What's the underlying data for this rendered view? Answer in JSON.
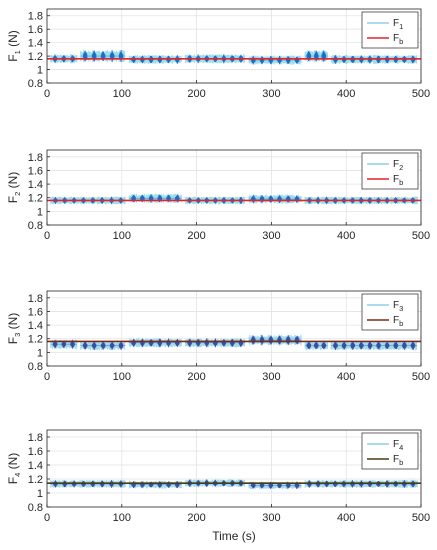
{
  "chart_data": [
    {
      "type": "line",
      "ylabel": "F1 (N)",
      "ylabel_main": "F",
      "ylabel_sub": "1",
      "ylabel_unit": " (N)",
      "xlabel": "",
      "xlim": [
        0,
        500
      ],
      "ylim": [
        0.8,
        1.9
      ],
      "xticks": [
        "0",
        "100",
        "200",
        "300",
        "400",
        "500"
      ],
      "yticks": [
        "0.8",
        "1",
        "1.2",
        "1.4",
        "1.6",
        "1.8"
      ],
      "grid": true,
      "legend_position": "top-right",
      "series": [
        {
          "name": "F1",
          "name_main": "F",
          "name_sub": "1",
          "color": "#1a6fc4",
          "style": "oscillating",
          "segments": [
            {
              "from": 5,
              "to": 40,
              "center": 1.16,
              "amp": 0.06
            },
            {
              "from": 45,
              "to": 105,
              "center": 1.2,
              "amp": 0.08
            },
            {
              "from": 110,
              "to": 180,
              "center": 1.15,
              "amp": 0.06
            },
            {
              "from": 185,
              "to": 265,
              "center": 1.16,
              "amp": 0.06
            },
            {
              "from": 270,
              "to": 340,
              "center": 1.14,
              "amp": 0.06
            },
            {
              "from": 345,
              "to": 375,
              "center": 1.2,
              "amp": 0.08
            },
            {
              "from": 380,
              "to": 495,
              "center": 1.15,
              "amp": 0.06
            }
          ]
        },
        {
          "name": "Fb",
          "name_main": "F",
          "name_sub": "b",
          "color": "#e3242b",
          "style": "flat",
          "value": 1.16
        }
      ]
    },
    {
      "type": "line",
      "ylabel": "F2 (N)",
      "ylabel_main": "F",
      "ylabel_sub": "2",
      "ylabel_unit": " (N)",
      "xlabel": "",
      "xlim": [
        0,
        500
      ],
      "ylim": [
        0.8,
        1.9
      ],
      "xticks": [
        "0",
        "100",
        "200",
        "300",
        "400",
        "500"
      ],
      "yticks": [
        "0.8",
        "1",
        "1.2",
        "1.4",
        "1.6",
        "1.8"
      ],
      "grid": true,
      "legend_position": "top-right",
      "series": [
        {
          "name": "F2",
          "name_main": "F",
          "name_sub": "2",
          "color": "#1a6fc4",
          "style": "oscillating",
          "segments": [
            {
              "from": 5,
              "to": 105,
              "center": 1.16,
              "amp": 0.05
            },
            {
              "from": 110,
              "to": 180,
              "center": 1.19,
              "amp": 0.06
            },
            {
              "from": 185,
              "to": 265,
              "center": 1.16,
              "amp": 0.05
            },
            {
              "from": 270,
              "to": 340,
              "center": 1.18,
              "amp": 0.06
            },
            {
              "from": 345,
              "to": 495,
              "center": 1.16,
              "amp": 0.05
            }
          ]
        },
        {
          "name": "Fb",
          "name_main": "F",
          "name_sub": "b",
          "color": "#e3242b",
          "style": "flat",
          "value": 1.16
        }
      ]
    },
    {
      "type": "line",
      "ylabel": "F3 (N)",
      "ylabel_main": "F",
      "ylabel_sub": "3",
      "ylabel_unit": " (N)",
      "xlabel": "",
      "xlim": [
        0,
        500
      ],
      "ylim": [
        0.8,
        1.9
      ],
      "xticks": [
        "0",
        "100",
        "200",
        "300",
        "400",
        "500"
      ],
      "yticks": [
        "0.8",
        "1",
        "1.2",
        "1.4",
        "1.6",
        "1.8"
      ],
      "grid": true,
      "legend_position": "top-right",
      "series": [
        {
          "name": "F3",
          "name_main": "F",
          "name_sub": "3",
          "color": "#3a4fa3",
          "style": "oscillating",
          "segments": [
            {
              "from": 5,
              "to": 40,
              "center": 1.12,
              "amp": 0.06
            },
            {
              "from": 45,
              "to": 105,
              "center": 1.1,
              "amp": 0.06
            },
            {
              "from": 110,
              "to": 180,
              "center": 1.14,
              "amp": 0.06
            },
            {
              "from": 185,
              "to": 265,
              "center": 1.14,
              "amp": 0.06
            },
            {
              "from": 270,
              "to": 340,
              "center": 1.18,
              "amp": 0.07
            },
            {
              "from": 345,
              "to": 375,
              "center": 1.1,
              "amp": 0.06
            },
            {
              "from": 380,
              "to": 495,
              "center": 1.1,
              "amp": 0.06
            }
          ]
        },
        {
          "name": "Fb",
          "name_main": "F",
          "name_sub": "b",
          "color": "#7a2a1a",
          "style": "flat",
          "value": 1.16
        }
      ]
    },
    {
      "type": "line",
      "ylabel": "F4 (N)",
      "ylabel_main": "F",
      "ylabel_sub": "4",
      "ylabel_unit": " (N)",
      "xlabel": "Time (s)",
      "xlim": [
        0,
        500
      ],
      "ylim": [
        0.8,
        1.9
      ],
      "xticks": [
        "0",
        "100",
        "200",
        "300",
        "400",
        "500"
      ],
      "yticks": [
        "0.8",
        "1",
        "1.2",
        "1.4",
        "1.6",
        "1.8"
      ],
      "grid": true,
      "legend_position": "top-right",
      "series": [
        {
          "name": "F4",
          "name_main": "F",
          "name_sub": "4",
          "color": "#3a4fa3",
          "style": "oscillating",
          "segments": [
            {
              "from": 5,
              "to": 105,
              "center": 1.13,
              "amp": 0.05
            },
            {
              "from": 110,
              "to": 180,
              "center": 1.12,
              "amp": 0.05
            },
            {
              "from": 185,
              "to": 265,
              "center": 1.14,
              "amp": 0.05
            },
            {
              "from": 270,
              "to": 340,
              "center": 1.11,
              "amp": 0.05
            },
            {
              "from": 345,
              "to": 495,
              "center": 1.13,
              "amp": 0.05
            }
          ]
        },
        {
          "name": "Fb",
          "name_main": "F",
          "name_sub": "b",
          "color": "#4a3a12",
          "style": "flat",
          "value": 1.14
        }
      ]
    }
  ]
}
